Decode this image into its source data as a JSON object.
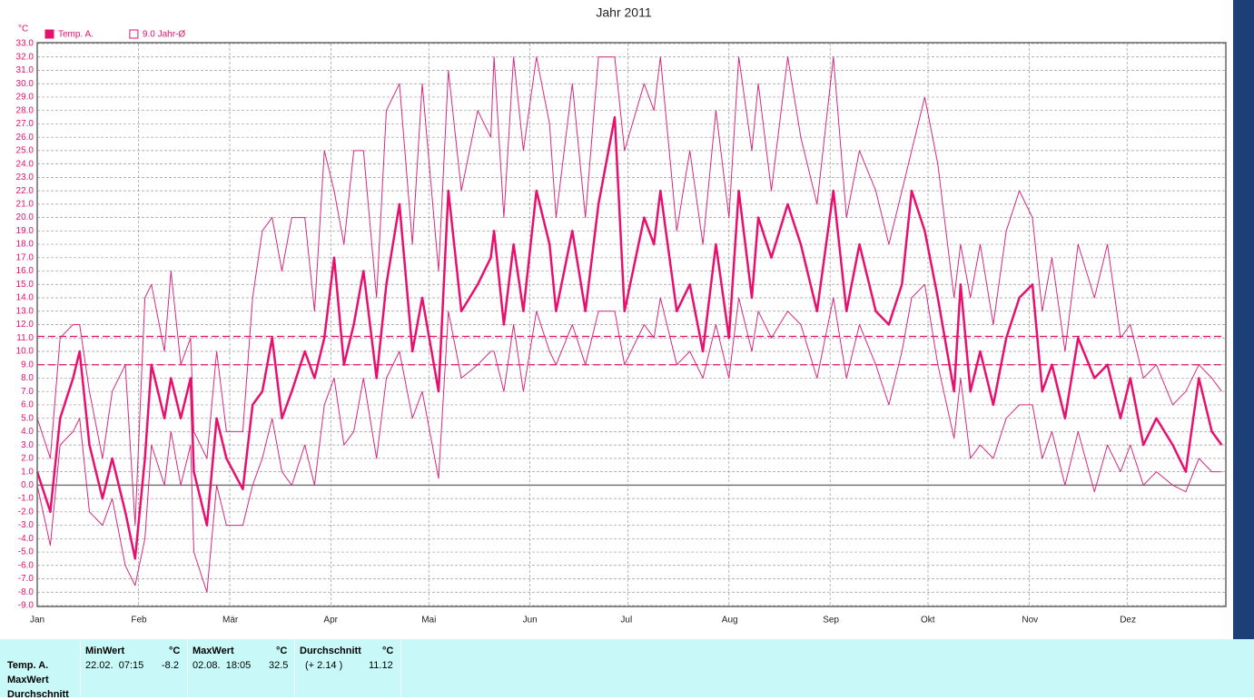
{
  "chart_data": {
    "type": "line",
    "title": "Jahr 2011",
    "y_label": "°C",
    "x": [
      1,
      5,
      8,
      12,
      14,
      17,
      21,
      24,
      28,
      31,
      34,
      36,
      40,
      42,
      45,
      48,
      49,
      53,
      56,
      59,
      64,
      67,
      70,
      73,
      76,
      79,
      83,
      86,
      89,
      92,
      95,
      98,
      101,
      105,
      108,
      112,
      116,
      119,
      124,
      127,
      131,
      136,
      140,
      141,
      144,
      147,
      150,
      154,
      158,
      160,
      165,
      169,
      173,
      178,
      181,
      187,
      190,
      192,
      197,
      201,
      205,
      209,
      213,
      216,
      220,
      222,
      226,
      231,
      235,
      240,
      245,
      249,
      253,
      258,
      262,
      266,
      269,
      273,
      277,
      282,
      284,
      287,
      290,
      294,
      298,
      302,
      306,
      309,
      312,
      316,
      320,
      325,
      329,
      333,
      336,
      340,
      344,
      349,
      353,
      357,
      361,
      364
    ],
    "series": [
      {
        "name": "Temp. A.",
        "color": "#e8106e",
        "width": 2.5,
        "values": [
          1,
          -2,
          5,
          8,
          10,
          3,
          -1,
          2,
          -2,
          -5.5,
          2,
          9,
          5,
          8,
          5,
          8,
          1,
          -3,
          5,
          2,
          -0.3,
          6,
          7,
          11,
          5,
          7,
          10,
          8,
          11,
          17,
          9,
          12,
          16,
          8,
          15,
          21,
          10,
          14,
          7,
          22,
          13,
          15,
          17,
          19,
          12,
          18,
          13,
          22,
          18,
          13,
          19,
          13,
          21,
          27.5,
          13,
          20,
          18,
          22,
          13,
          15,
          10,
          18,
          11,
          22,
          14,
          20,
          17,
          21,
          18,
          13,
          22,
          13,
          18,
          13,
          12,
          15,
          22,
          19,
          14,
          7,
          15,
          7,
          10,
          6,
          11,
          14,
          15,
          7,
          9,
          5,
          11,
          8,
          9,
          5,
          8,
          3,
          5,
          3,
          1,
          8,
          4,
          3
        ]
      },
      {
        "color": "#d42a80",
        "width": 1,
        "values": [
          5,
          2,
          11,
          12,
          12,
          7,
          2,
          7,
          9,
          -3,
          14,
          15,
          10,
          16,
          9,
          11,
          4,
          2,
          10,
          4,
          4,
          14,
          19,
          20,
          16,
          20,
          20,
          13,
          25,
          22,
          18,
          25,
          25,
          14,
          28,
          30,
          18,
          30,
          16,
          31,
          22,
          28,
          26,
          32,
          20,
          32,
          25,
          32,
          27,
          20,
          30,
          20,
          32,
          32,
          25,
          30,
          28,
          32,
          19,
          25,
          18,
          28,
          20,
          32,
          25,
          30,
          22,
          32,
          26,
          21,
          32,
          20,
          25,
          22,
          18,
          22,
          25,
          29,
          24,
          14,
          18,
          14,
          18,
          12,
          19,
          22,
          20,
          13,
          17,
          10,
          18,
          14,
          18,
          11,
          12,
          8,
          9,
          6,
          7,
          9,
          8,
          7
        ]
      },
      {
        "color": "#d42a80",
        "width": 1,
        "values": [
          0,
          -4.5,
          3,
          4,
          5,
          -2,
          -3,
          -1,
          -6,
          -7.5,
          -4,
          3,
          0,
          4,
          0,
          3,
          -5,
          -8,
          0,
          -3,
          -3,
          0,
          2,
          5,
          1,
          0,
          3,
          0,
          6,
          8,
          3,
          4,
          8,
          2,
          8,
          10,
          5,
          7,
          0.5,
          13,
          8,
          9,
          10,
          10,
          7,
          12,
          7,
          13,
          10,
          9,
          12,
          9,
          13,
          13,
          9,
          12,
          11,
          14,
          9,
          10,
          8,
          12,
          8,
          14,
          10,
          13,
          11,
          13,
          12,
          8,
          14,
          8,
          12,
          9,
          6,
          10,
          14,
          15,
          9,
          3.5,
          8,
          2,
          3,
          2,
          5,
          6,
          6,
          2,
          4,
          0,
          4,
          -0.5,
          3,
          1,
          3,
          0,
          1,
          0,
          -0.5,
          2,
          1,
          1
        ]
      }
    ],
    "reference_lines": [
      {
        "name": "9.0 Jahr-Ø",
        "value": 9.0,
        "color": "#e8106e"
      },
      {
        "value": 11.12,
        "color": "#e8106e"
      }
    ],
    "xlim": [
      1,
      365
    ],
    "xticks": [
      {
        "value": 1,
        "label": "Jan"
      },
      {
        "value": 32,
        "label": "Feb"
      },
      {
        "value": 60,
        "label": "Mär"
      },
      {
        "value": 91,
        "label": "Apr"
      },
      {
        "value": 121,
        "label": "Mai"
      },
      {
        "value": 152,
        "label": "Jun"
      },
      {
        "value": 182,
        "label": "Jul"
      },
      {
        "value": 213,
        "label": "Aug"
      },
      {
        "value": 244,
        "label": "Sep"
      },
      {
        "value": 274,
        "label": "Okt"
      },
      {
        "value": 305,
        "label": "Nov"
      },
      {
        "value": 335,
        "label": "Dez"
      }
    ],
    "ylim": [
      -9,
      33
    ],
    "yticks": [
      {
        "value": 33,
        "label": "33.0"
      },
      {
        "value": 32,
        "label": "32.0"
      },
      {
        "value": 31,
        "label": "31.0"
      },
      {
        "value": 30,
        "label": "30.0"
      },
      {
        "value": 29,
        "label": "29.0"
      },
      {
        "value": 28,
        "label": "28.0"
      },
      {
        "value": 27,
        "label": "27.0"
      },
      {
        "value": 26,
        "label": "26.0"
      },
      {
        "value": 25,
        "label": "25.0"
      },
      {
        "value": 24,
        "label": "24.0"
      },
      {
        "value": 23,
        "label": "23.0"
      },
      {
        "value": 22,
        "label": "22.0"
      },
      {
        "value": 21,
        "label": "21.0"
      },
      {
        "value": 20,
        "label": "20.0"
      },
      {
        "value": 19,
        "label": "19.0"
      },
      {
        "value": 18,
        "label": "18.0"
      },
      {
        "value": 17,
        "label": "17.0"
      },
      {
        "value": 16,
        "label": "16.0"
      },
      {
        "value": 15,
        "label": "15.0"
      },
      {
        "value": 14,
        "label": "14.0"
      },
      {
        "value": 13,
        "label": "13.0"
      },
      {
        "value": 12,
        "label": "12.0"
      },
      {
        "value": 11,
        "label": "11.0"
      },
      {
        "value": 10,
        "label": "10.0"
      },
      {
        "value": 9,
        "label": "9.0"
      },
      {
        "value": 8,
        "label": "8.0"
      },
      {
        "value": 7,
        "label": "7.0"
      },
      {
        "value": 6,
        "label": "6.0"
      },
      {
        "value": 5,
        "label": "5.0"
      },
      {
        "value": 4,
        "label": "4.0"
      },
      {
        "value": 3,
        "label": "3.0"
      },
      {
        "value": 2,
        "label": "2.0"
      },
      {
        "value": 1,
        "label": "1.0"
      },
      {
        "value": 0,
        "label": "0.0"
      },
      {
        "value": -1,
        "label": "-1.0"
      },
      {
        "value": -2,
        "label": "-2.0"
      },
      {
        "value": -3,
        "label": "-3.0"
      },
      {
        "value": -4,
        "label": "-4.0"
      },
      {
        "value": -5,
        "label": "-5.0"
      },
      {
        "value": -6,
        "label": "-6.0"
      },
      {
        "value": -7,
        "label": "-7.0"
      },
      {
        "value": -8,
        "label": "-8.0"
      },
      {
        "value": -9,
        "label": "-9.0"
      }
    ],
    "grid": true
  },
  "stats": {
    "row_labels": [
      "Temp. A.",
      "MaxWert",
      "Durchschnitt"
    ],
    "columns": [
      {
        "title": "MinWert",
        "unit": "°C",
        "date": "22.02.  07:15",
        "value": -8.2
      },
      {
        "title": "MaxWert",
        "unit": "°C",
        "date": "02.08.  18:05",
        "value": 32.5
      },
      {
        "title": "Durchschnitt",
        "unit": "°C",
        "date": "(+ 2.14 )",
        "value": 11.12
      }
    ]
  }
}
